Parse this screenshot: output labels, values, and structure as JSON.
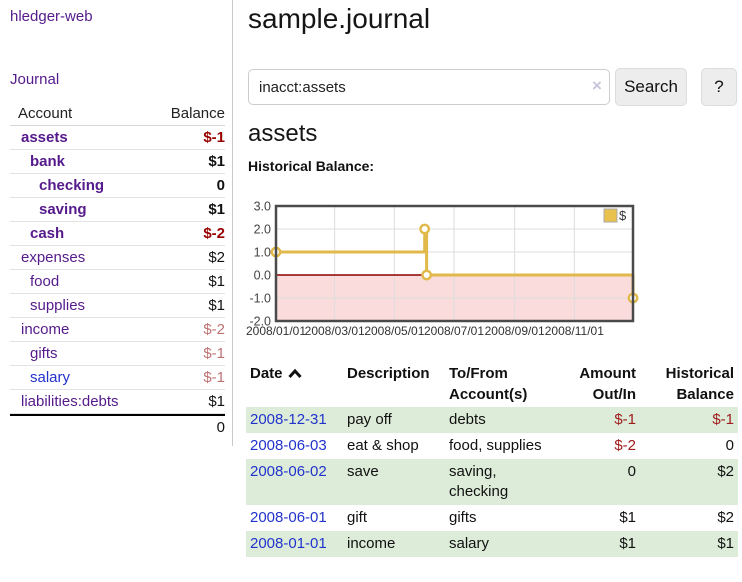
{
  "app": {
    "brand": "hledger-web"
  },
  "sidebar": {
    "journal_link": "Journal",
    "table": {
      "account_header": "Account",
      "balance_header": "Balance",
      "rows": [
        {
          "name": "assets",
          "indent": 0,
          "bold": true,
          "link": "purple",
          "balance": "$-1",
          "balance_style": "neg-strong"
        },
        {
          "name": "bank",
          "indent": 1,
          "bold": true,
          "link": "purple",
          "balance": "$1",
          "balance_style": "bold"
        },
        {
          "name": "checking",
          "indent": 2,
          "bold": true,
          "link": "purple",
          "balance": "0",
          "balance_style": "bold"
        },
        {
          "name": "saving",
          "indent": 2,
          "bold": true,
          "link": "purple",
          "balance": "$1",
          "balance_style": "bold"
        },
        {
          "name": "cash",
          "indent": 1,
          "bold": true,
          "link": "purple",
          "balance": "$-2",
          "balance_style": "neg-strong"
        },
        {
          "name": "expenses",
          "indent": 0,
          "bold": false,
          "link": "purple",
          "balance": "$2",
          "balance_style": "norm"
        },
        {
          "name": "food",
          "indent": 1,
          "bold": false,
          "link": "purple",
          "balance": "$1",
          "balance_style": "norm"
        },
        {
          "name": "supplies",
          "indent": 1,
          "bold": false,
          "link": "purple",
          "balance": "$1",
          "balance_style": "norm"
        },
        {
          "name": "income",
          "indent": 0,
          "bold": false,
          "link": "purple",
          "balance": "$-2",
          "balance_style": "neg-soft"
        },
        {
          "name": "gifts",
          "indent": 1,
          "bold": false,
          "link": "purple",
          "balance": "$-1",
          "balance_style": "neg-soft"
        },
        {
          "name": "salary",
          "indent": 1,
          "bold": false,
          "link": "blue",
          "balance": "$-1",
          "balance_style": "neg-soft"
        },
        {
          "name": "liabilities:debts",
          "indent": 0,
          "bold": false,
          "link": "purple",
          "balance": "$1",
          "balance_style": "norm"
        }
      ],
      "total": "0"
    }
  },
  "header": {
    "title": "sample.journal"
  },
  "search": {
    "value": "inacct:assets",
    "clear_icon": "×",
    "button_label": "Search",
    "help_label": "?"
  },
  "main": {
    "section_title": "assets"
  },
  "chart_data": {
    "type": "line",
    "title": "Historical Balance:",
    "legend": [
      {
        "label": "$",
        "color": "#e8c24d"
      }
    ],
    "legend_position": "top-right",
    "ylim": [
      -2,
      3
    ],
    "yticks": [
      3.0,
      2.0,
      1.0,
      0.0,
      -1.0,
      -2.0
    ],
    "xtick_labels": [
      "2008/01/01",
      "2008/03/01",
      "2008/05/01",
      "2008/07/01",
      "2008/09/01",
      "2008/11/01"
    ],
    "xtick_days": [
      0,
      60,
      121,
      182,
      244,
      305
    ],
    "x_range_days": [
      0,
      365
    ],
    "series": [
      {
        "name": "$",
        "points": [
          [
            "2008-01-01",
            1
          ],
          [
            "2008-06-01",
            2
          ],
          [
            "2008-06-02",
            2
          ],
          [
            "2008-06-03",
            0
          ],
          [
            "2008-12-31",
            -1
          ]
        ],
        "step_path_days": [
          [
            0,
            1
          ],
          [
            152,
            1
          ],
          [
            152,
            2
          ],
          [
            154,
            2
          ],
          [
            154,
            0
          ],
          [
            365,
            0
          ],
          [
            365,
            -1
          ]
        ],
        "marker_days": [
          [
            0,
            1
          ],
          [
            152,
            2
          ],
          [
            154,
            0
          ],
          [
            365,
            -1
          ]
        ]
      }
    ],
    "line_color": "#e0b94a",
    "marker_fill": "#ffffff",
    "negative_region_color": "#fbdcdc",
    "zero_line_color": "#8b0000",
    "grid_color": "#dddddd",
    "border_color": "#4a4a4a",
    "grid": true
  },
  "register": {
    "headers": [
      {
        "label": "Date",
        "sort": "asc",
        "align": "left"
      },
      {
        "label": "Description",
        "align": "left"
      },
      {
        "label": "To/From Account(s)",
        "align": "left"
      },
      {
        "label": "Amount Out/In",
        "align": "right"
      },
      {
        "label": "Historical Balance",
        "align": "right"
      }
    ],
    "rows": [
      {
        "date": "2008-12-31",
        "description": "pay off",
        "accounts": "debts",
        "amount": "$-1",
        "amount_neg": true,
        "balance": "$-1",
        "balance_neg": true,
        "highlight": true
      },
      {
        "date": "2008-06-03",
        "description": "eat & shop",
        "accounts": "food, supplies",
        "amount": "$-2",
        "amount_neg": true,
        "balance": "0",
        "balance_neg": false,
        "highlight": false
      },
      {
        "date": "2008-06-02",
        "description": "save",
        "accounts": "saving, checking",
        "amount": "0",
        "amount_neg": false,
        "balance": "$2",
        "balance_neg": false,
        "highlight": true
      },
      {
        "date": "2008-06-01",
        "description": "gift",
        "accounts": "gifts",
        "amount": "$1",
        "amount_neg": false,
        "balance": "$2",
        "balance_neg": false,
        "highlight": false
      },
      {
        "date": "2008-01-01",
        "description": "income",
        "accounts": "salary",
        "amount": "$1",
        "amount_neg": false,
        "balance": "$1",
        "balance_neg": false,
        "highlight": true
      }
    ]
  },
  "colors": {
    "link_purple": "#551A8B",
    "link_blue": "#2233cc",
    "negative_strong": "#990000",
    "negative_soft": "#bd7172",
    "negative_table": "#a01c1c",
    "row_highlight_green": "#dcecd9",
    "series_gold": "#e0b94a"
  }
}
